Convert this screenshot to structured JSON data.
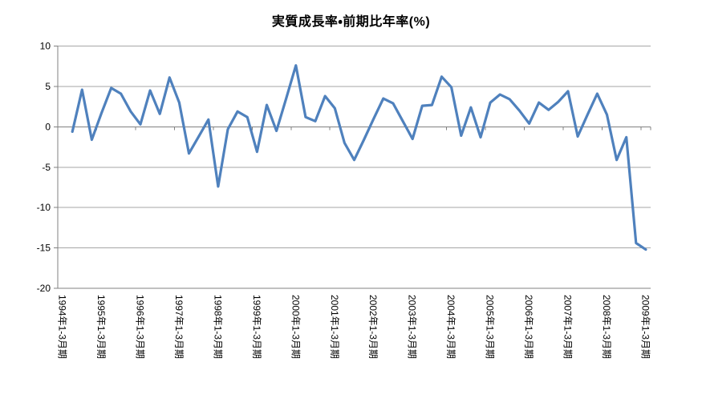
{
  "title": "実質成長率・前期比年率(%)",
  "chart_data": {
    "type": "line",
    "title": "実質成長率・前期比年率(%)",
    "categories": [
      "1994Q1",
      "1994Q2",
      "1994Q3",
      "1994Q4",
      "1995Q1",
      "1995Q2",
      "1995Q3",
      "1995Q4",
      "1996Q1",
      "1996Q2",
      "1996Q3",
      "1996Q4",
      "1997Q1",
      "1997Q2",
      "1997Q3",
      "1997Q4",
      "1998Q1",
      "1998Q2",
      "1998Q3",
      "1998Q4",
      "1999Q1",
      "1999Q2",
      "1999Q3",
      "1999Q4",
      "2000Q1",
      "2000Q2",
      "2000Q3",
      "2000Q4",
      "2001Q1",
      "2001Q2",
      "2001Q3",
      "2001Q4",
      "2002Q1",
      "2002Q2",
      "2002Q3",
      "2002Q4",
      "2003Q1",
      "2003Q2",
      "2003Q3",
      "2003Q4",
      "2004Q1",
      "2004Q2",
      "2004Q3",
      "2004Q4",
      "2005Q1",
      "2005Q2",
      "2005Q3",
      "2005Q4",
      "2006Q1",
      "2006Q2",
      "2006Q3",
      "2006Q4",
      "2007Q1",
      "2007Q2",
      "2007Q3",
      "2007Q4",
      "2008Q1",
      "2008Q2",
      "2008Q3",
      "2008Q4",
      "2009Q1"
    ],
    "series": [
      {
        "name": "実質成長率・前期比年率",
        "color": "#4F81BD",
        "values": [
          null,
          -0.6,
          4.6,
          -1.6,
          1.7,
          4.8,
          4.1,
          1.9,
          0.3,
          4.5,
          1.6,
          6.1,
          3.0,
          -3.3,
          -1.2,
          0.9,
          -7.4,
          -0.3,
          1.9,
          1.2,
          -3.1,
          2.7,
          -0.5,
          3.5,
          7.6,
          1.2,
          0.7,
          3.8,
          2.3,
          -2.0,
          -4.1,
          -1.6,
          1.0,
          3.5,
          2.9,
          0.7,
          -1.5,
          2.6,
          2.7,
          6.2,
          4.9,
          -1.1,
          2.4,
          -1.3,
          3.0,
          4.0,
          3.4,
          2.0,
          0.4,
          3.0,
          2.1,
          3.1,
          4.4,
          -1.2,
          1.5,
          4.1,
          1.5,
          -4.1,
          -1.3,
          -14.4,
          -15.2
        ]
      }
    ],
    "x_tick_labels": [
      "1994年1-3月期",
      "1995年1-3月期",
      "1996年1-3月期",
      "1997年1-3月期",
      "1998年1-3月期",
      "1999年1-3月期",
      "2000年1-3月期",
      "2001年1-3月期",
      "2002年1-3月期",
      "2003年1-3月期",
      "2004年1-3月期",
      "2005年1-3月期",
      "2006年1-3月期",
      "2007年1-3月期",
      "2008年1-3月期",
      "2009年1-3月期"
    ],
    "x_tick_every": 4,
    "y_ticks": [
      10,
      5,
      0,
      -5,
      -10,
      -15,
      -20
    ],
    "ylim": [
      -20,
      10
    ],
    "xlabel": "",
    "ylabel": "",
    "grid": true,
    "legend": false,
    "colors": {
      "line": "#4F81BD",
      "grid": "#A6A6A6",
      "axis": "#808080",
      "background": "#FFFFFF",
      "text": "#000000"
    }
  }
}
